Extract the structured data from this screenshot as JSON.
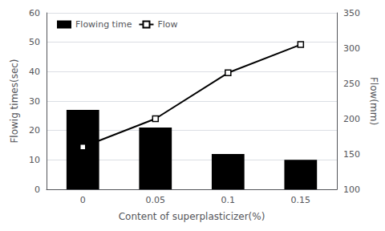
{
  "chart_data": {
    "type": "bar",
    "xlabel": "Content of superplasticizer(%)",
    "ylabel": "Flowig times(sec)",
    "y2label": "Flow(mm)",
    "categories": [
      "0",
      "0.05",
      "0.1",
      "0.15"
    ],
    "series": [
      {
        "name": "Flowing time",
        "type": "bar",
        "color": "#000000",
        "values": [
          27,
          21,
          12,
          10
        ]
      },
      {
        "name": "Flow",
        "type": "line",
        "color": "#000000",
        "marker": "square",
        "axis": "y2",
        "values": [
          160,
          200,
          265,
          305
        ]
      }
    ],
    "ylim": [
      0,
      60
    ],
    "yticks": [
      0,
      10,
      20,
      30,
      40,
      50,
      60
    ],
    "y2lim": [
      100,
      350
    ],
    "y2ticks": [
      100,
      150,
      200,
      250,
      300,
      350
    ],
    "grid": true,
    "legend": "upper left"
  }
}
